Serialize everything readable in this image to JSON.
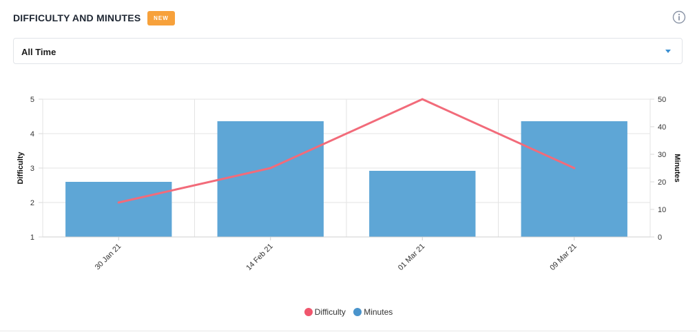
{
  "header": {
    "title": "DIFFICULTY AND MINUTES",
    "badge": "NEW",
    "icon": "info-icon"
  },
  "filter": {
    "selected": "All Time",
    "icon": "chevron-down-icon"
  },
  "colors": {
    "difficulty": "#f26b7a",
    "minutes": "#5ea6d6",
    "badge": "#f7a13b"
  },
  "chart_data": {
    "type": "bar",
    "categories": [
      "30 Jan 21",
      "14 Feb 21",
      "01 Mar 21",
      "09 Mar 21"
    ],
    "series": [
      {
        "name": "Minutes",
        "type": "bar",
        "axis": "right",
        "values": [
          20,
          42,
          24,
          42
        ]
      },
      {
        "name": "Difficulty",
        "type": "line",
        "axis": "left",
        "values": [
          2,
          3,
          5,
          3
        ]
      }
    ],
    "y_left": {
      "label": "Difficulty",
      "range": [
        1,
        5
      ],
      "ticks": [
        1,
        2,
        3,
        4,
        5
      ]
    },
    "y_right": {
      "label": "Minutes",
      "range": [
        0,
        50
      ],
      "ticks": [
        0,
        10,
        20,
        30,
        40,
        50
      ]
    },
    "grid": true,
    "legend": {
      "position": "bottom-center",
      "items": [
        "Difficulty",
        "Minutes"
      ]
    }
  }
}
